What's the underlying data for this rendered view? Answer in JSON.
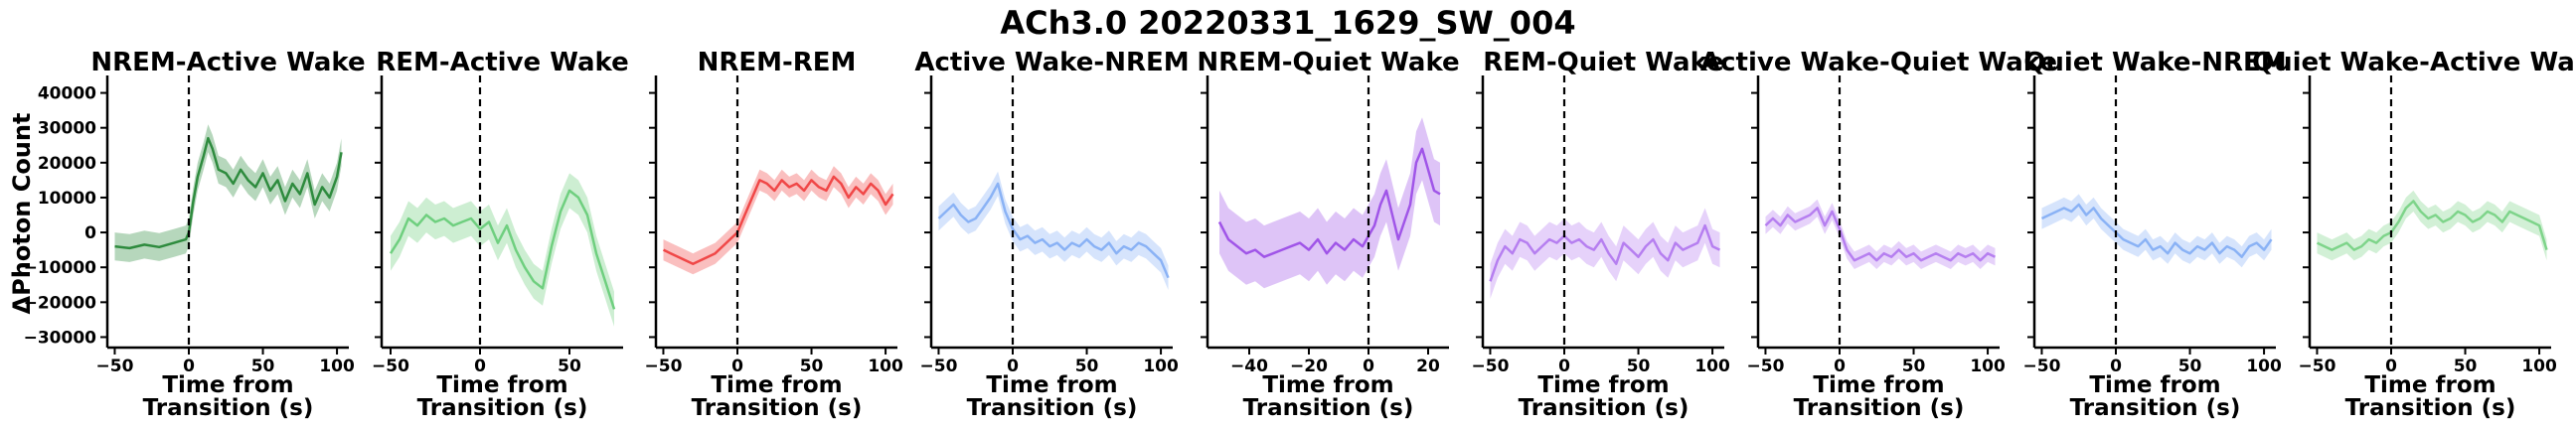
{
  "figure_title": "ACh3.0 20220331_1629_SW_004",
  "ylabel": "ΔPhoton Count",
  "chart_data": [
    {
      "type": "line",
      "title": "NREM-Active Wake",
      "color": "#2e8b3e",
      "xlabel_lines": [
        "Time from",
        "Transition (s)"
      ],
      "xlim": [
        -55,
        108
      ],
      "xticks": [
        -50,
        0,
        50,
        100
      ],
      "ylim": [
        -33000,
        45000
      ],
      "yticks": [
        -30000,
        -20000,
        -10000,
        0,
        10000,
        20000,
        30000,
        40000
      ],
      "grid": false,
      "legend": "none",
      "transition_line_x": 0,
      "series": [
        {
          "x": [
            -50,
            -40,
            -30,
            -20,
            -10,
            -2,
            0,
            3,
            6,
            10,
            13,
            16,
            20,
            25,
            30,
            35,
            40,
            45,
            50,
            55,
            60,
            65,
            70,
            75,
            80,
            85,
            90,
            95,
            100,
            103
          ],
          "y": [
            -4000,
            -4500,
            -3500,
            -4200,
            -3000,
            -2000,
            0,
            9000,
            16000,
            22000,
            27000,
            24000,
            18000,
            17000,
            14000,
            18000,
            15000,
            13000,
            17000,
            12000,
            15000,
            9000,
            14000,
            11000,
            17000,
            8000,
            13000,
            10000,
            16000,
            23000
          ],
          "band": 4000
        }
      ]
    },
    {
      "type": "line",
      "title": "REM-Active Wake",
      "color": "#6fcf7f",
      "xlabel_lines": [
        "Time from",
        "Transition (s)"
      ],
      "xlim": [
        -55,
        80
      ],
      "xticks": [
        -50,
        0,
        50
      ],
      "ylim": [
        -33000,
        45000
      ],
      "yticks": [
        -30000,
        -20000,
        -10000,
        0,
        10000,
        20000,
        30000,
        40000
      ],
      "grid": false,
      "legend": "none",
      "transition_line_x": 0,
      "series": [
        {
          "x": [
            -50,
            -45,
            -40,
            -35,
            -30,
            -25,
            -20,
            -15,
            -10,
            -5,
            0,
            5,
            10,
            15,
            20,
            25,
            30,
            35,
            40,
            45,
            50,
            55,
            60,
            65,
            70,
            75
          ],
          "y": [
            -6000,
            -2000,
            4000,
            2000,
            5000,
            3000,
            4000,
            2000,
            3000,
            4000,
            1000,
            3000,
            -3000,
            2000,
            -5000,
            -10000,
            -14000,
            -16000,
            -4000,
            6000,
            12000,
            10000,
            5000,
            -6000,
            -14000,
            -22000
          ],
          "band": 5000
        }
      ]
    },
    {
      "type": "line",
      "title": "NREM-REM",
      "color": "#f04747",
      "xlabel_lines": [
        "Time from",
        "Transition (s)"
      ],
      "xlim": [
        -55,
        108
      ],
      "xticks": [
        -50,
        0,
        50,
        100
      ],
      "ylim": [
        -33000,
        45000
      ],
      "yticks": [
        -30000,
        -20000,
        -10000,
        0,
        10000,
        20000,
        30000,
        40000
      ],
      "grid": false,
      "legend": "none",
      "transition_line_x": 0,
      "series": [
        {
          "x": [
            -50,
            -45,
            -40,
            -35,
            -30,
            -25,
            -20,
            -15,
            -10,
            -5,
            0,
            5,
            10,
            15,
            20,
            25,
            30,
            35,
            40,
            45,
            50,
            55,
            60,
            65,
            70,
            75,
            80,
            85,
            90,
            95,
            100,
            105
          ],
          "y": [
            -5000,
            -6000,
            -7000,
            -8000,
            -9000,
            -8000,
            -7000,
            -6000,
            -4000,
            -2000,
            0,
            5000,
            10000,
            15000,
            14000,
            12000,
            15000,
            13000,
            14000,
            12000,
            15000,
            13000,
            12000,
            16000,
            14000,
            10000,
            13000,
            11000,
            14000,
            12000,
            8000,
            11000
          ],
          "band": 3000
        }
      ]
    },
    {
      "type": "line",
      "title": "Active Wake-NREM",
      "color": "#8ab2f5",
      "xlabel_lines": [
        "Time from",
        "Transition (s)"
      ],
      "xlim": [
        -55,
        108
      ],
      "xticks": [
        -50,
        0,
        50,
        100
      ],
      "ylim": [
        -33000,
        45000
      ],
      "yticks": [
        -30000,
        -20000,
        -10000,
        0,
        10000,
        20000,
        30000,
        40000
      ],
      "grid": false,
      "legend": "none",
      "transition_line_x": 0,
      "series": [
        {
          "x": [
            -50,
            -45,
            -40,
            -35,
            -30,
            -25,
            -20,
            -15,
            -10,
            -5,
            0,
            5,
            10,
            15,
            20,
            25,
            30,
            35,
            40,
            45,
            50,
            55,
            60,
            65,
            70,
            75,
            80,
            85,
            90,
            95,
            100,
            105
          ],
          "y": [
            4000,
            6000,
            8000,
            5000,
            3000,
            4000,
            7000,
            10000,
            14000,
            6000,
            1000,
            -2000,
            -1000,
            -3000,
            -2000,
            -4000,
            -3000,
            -5000,
            -3000,
            -4000,
            -2000,
            -4000,
            -5000,
            -3000,
            -6000,
            -4000,
            -5000,
            -3000,
            -4000,
            -6000,
            -8000,
            -13000
          ],
          "band": 3500
        }
      ]
    },
    {
      "type": "line",
      "title": "NREM-Quiet Wake",
      "color": "#a055e8",
      "xlabel_lines": [
        "Time from",
        "Transition (s)"
      ],
      "xlim": [
        -54,
        27
      ],
      "xticks": [
        -40,
        -20,
        0,
        20
      ],
      "ylim": [
        -33000,
        45000
      ],
      "yticks": [
        -30000,
        -20000,
        -10000,
        0,
        10000,
        20000,
        30000,
        40000
      ],
      "grid": false,
      "legend": "none",
      "transition_line_x": 0,
      "series": [
        {
          "x": [
            -50,
            -47,
            -44,
            -41,
            -38,
            -35,
            -32,
            -29,
            -26,
            -23,
            -20,
            -17,
            -14,
            -11,
            -8,
            -5,
            -2,
            0,
            2,
            4,
            6,
            8,
            10,
            12,
            14,
            16,
            18,
            20,
            22,
            24
          ],
          "y": [
            3000,
            -2000,
            -4000,
            -6000,
            -5000,
            -7000,
            -6000,
            -5000,
            -4000,
            -3000,
            -5000,
            -2000,
            -6000,
            -3000,
            -5000,
            -2000,
            -4000,
            -1000,
            2000,
            8000,
            12000,
            5000,
            -2000,
            3000,
            8000,
            20000,
            24000,
            18000,
            12000,
            11000
          ],
          "band": 9000
        }
      ]
    },
    {
      "type": "line",
      "title": "REM-Quiet Wake",
      "color": "#b67ff0",
      "xlabel_lines": [
        "Time from",
        "Transition (s)"
      ],
      "xlim": [
        -55,
        108
      ],
      "xticks": [
        -50,
        0,
        50,
        100
      ],
      "ylim": [
        -33000,
        45000
      ],
      "yticks": [
        -30000,
        -20000,
        -10000,
        0,
        10000,
        20000,
        30000,
        40000
      ],
      "grid": false,
      "legend": "none",
      "transition_line_x": 0,
      "series": [
        {
          "x": [
            -50,
            -45,
            -40,
            -35,
            -30,
            -25,
            -20,
            -15,
            -10,
            -5,
            0,
            5,
            10,
            15,
            20,
            25,
            30,
            35,
            40,
            45,
            50,
            55,
            60,
            65,
            70,
            75,
            80,
            85,
            90,
            95,
            100,
            105
          ],
          "y": [
            -14000,
            -8000,
            -4000,
            -6000,
            -2000,
            -3000,
            -6000,
            -4000,
            -2000,
            -3000,
            -1000,
            -3000,
            -2000,
            -4000,
            -5000,
            -2000,
            -6000,
            -9000,
            -3000,
            -5000,
            -7000,
            -4000,
            -2000,
            -6000,
            -8000,
            -3000,
            -5000,
            -4000,
            -3000,
            2000,
            -4000,
            -5000
          ],
          "band": 5000
        }
      ]
    },
    {
      "type": "line",
      "title": "Active Wake-Quiet Wake",
      "color": "#b67ff0",
      "xlabel_lines": [
        "Time from",
        "Transition (s)"
      ],
      "xlim": [
        -55,
        108
      ],
      "xticks": [
        -50,
        0,
        50,
        100
      ],
      "ylim": [
        -33000,
        45000
      ],
      "yticks": [
        -30000,
        -20000,
        -10000,
        0,
        10000,
        20000,
        30000,
        40000
      ],
      "grid": false,
      "legend": "none",
      "transition_line_x": 0,
      "series": [
        {
          "x": [
            -50,
            -45,
            -40,
            -35,
            -30,
            -25,
            -20,
            -15,
            -10,
            -5,
            0,
            5,
            10,
            15,
            20,
            25,
            30,
            35,
            40,
            45,
            50,
            55,
            60,
            65,
            70,
            75,
            80,
            85,
            90,
            95,
            100,
            105
          ],
          "y": [
            2000,
            4000,
            2000,
            5000,
            3000,
            4000,
            5000,
            7000,
            2000,
            6000,
            1000,
            -5000,
            -8000,
            -7000,
            -6000,
            -8000,
            -6000,
            -7000,
            -5000,
            -7000,
            -6000,
            -8000,
            -7000,
            -6000,
            -7000,
            -8000,
            -6000,
            -7000,
            -6000,
            -8000,
            -6000,
            -7000
          ],
          "band": 2500
        }
      ]
    },
    {
      "type": "line",
      "title": "Quiet Wake-NREM",
      "color": "#8ab2f5",
      "xlabel_lines": [
        "Time from",
        "Transition (s)"
      ],
      "xlim": [
        -55,
        108
      ],
      "xticks": [
        -50,
        0,
        50,
        100
      ],
      "ylim": [
        -33000,
        45000
      ],
      "yticks": [
        -30000,
        -20000,
        -10000,
        0,
        10000,
        20000,
        30000,
        40000
      ],
      "grid": false,
      "legend": "none",
      "transition_line_x": 0,
      "series": [
        {
          "x": [
            -50,
            -45,
            -40,
            -35,
            -30,
            -25,
            -20,
            -15,
            -10,
            -5,
            0,
            5,
            10,
            15,
            20,
            25,
            30,
            35,
            40,
            45,
            50,
            55,
            60,
            65,
            70,
            75,
            80,
            85,
            90,
            95,
            100,
            105
          ],
          "y": [
            4000,
            5000,
            6000,
            7000,
            6000,
            8000,
            5000,
            7000,
            4000,
            2000,
            0,
            -2000,
            -3000,
            -4000,
            -2000,
            -5000,
            -4000,
            -6000,
            -3000,
            -5000,
            -6000,
            -4000,
            -5000,
            -3000,
            -6000,
            -4000,
            -5000,
            -7000,
            -4000,
            -3000,
            -5000,
            -2000
          ],
          "band": 3000
        }
      ]
    },
    {
      "type": "line",
      "title": "Quiet Wake-Active Wake",
      "color": "#7ed48a",
      "xlabel_lines": [
        "Time from",
        "Transition (s)"
      ],
      "xlim": [
        -55,
        108
      ],
      "xticks": [
        -50,
        0,
        50,
        100
      ],
      "ylim": [
        -33000,
        45000
      ],
      "yticks": [
        -30000,
        -20000,
        -10000,
        0,
        10000,
        20000,
        30000,
        40000
      ],
      "grid": false,
      "legend": "none",
      "transition_line_x": 0,
      "series": [
        {
          "x": [
            -50,
            -45,
            -40,
            -35,
            -30,
            -25,
            -20,
            -15,
            -10,
            -5,
            0,
            5,
            10,
            15,
            20,
            25,
            30,
            35,
            40,
            45,
            50,
            55,
            60,
            65,
            70,
            75,
            80,
            85,
            90,
            95,
            100,
            105
          ],
          "y": [
            -3000,
            -4000,
            -5000,
            -4000,
            -3000,
            -5000,
            -4000,
            -2000,
            -3000,
            -1000,
            0,
            3000,
            7000,
            9000,
            6000,
            4000,
            5000,
            3000,
            4000,
            6000,
            5000,
            3000,
            4000,
            6000,
            5000,
            3000,
            6000,
            5000,
            4000,
            3000,
            2000,
            -5000
          ],
          "band": 3000
        }
      ]
    }
  ]
}
